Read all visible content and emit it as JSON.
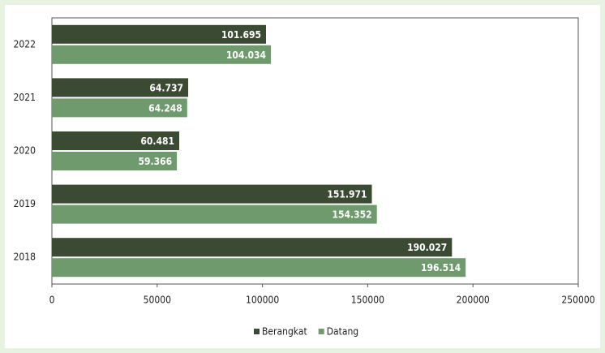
{
  "chart_data": {
    "type": "bar",
    "orientation": "horizontal",
    "categories": [
      "2022",
      "2021",
      "2020",
      "2019",
      "2018"
    ],
    "series": [
      {
        "name": "Berangkat",
        "color": "#3b4a33",
        "values": [
          101695,
          64737,
          60481,
          151971,
          190027
        ],
        "value_labels": [
          "101.695",
          "64.737",
          "60.481",
          "151.971",
          "190.027"
        ]
      },
      {
        "name": "Datang",
        "color": "#6e9a6d",
        "values": [
          104034,
          64248,
          59366,
          154352,
          196514
        ],
        "value_labels": [
          "104.034",
          "64.248",
          "59.366",
          "154.352",
          "196.514"
        ]
      }
    ],
    "xlim": [
      0,
      250000
    ],
    "xticks": [
      0,
      50000,
      100000,
      150000,
      200000,
      250000
    ],
    "legend": "bottom"
  }
}
